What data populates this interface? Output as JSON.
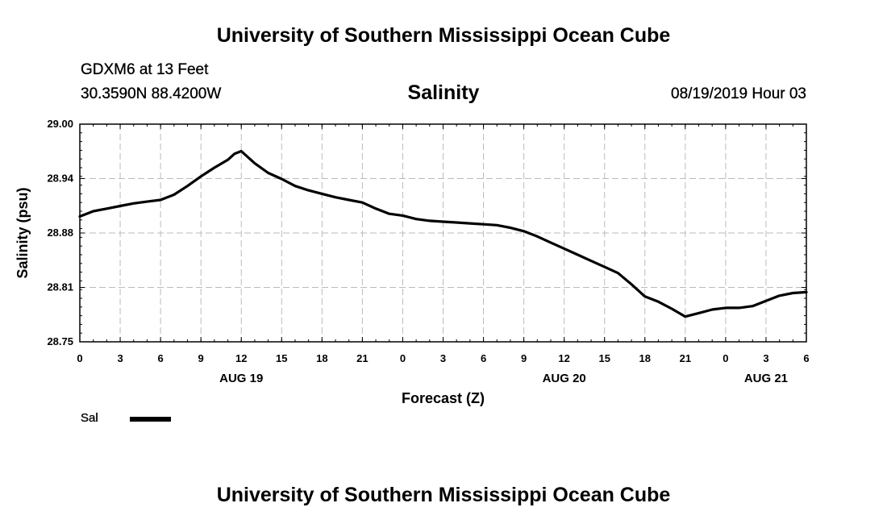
{
  "header": {
    "title": "University of Southern Mississippi Ocean Cube",
    "station": "GDXM6 at 13 Feet",
    "coords": "30.3590N 88.4200W",
    "timestamp": "08/19/2019 Hour 03"
  },
  "footer": {
    "title": "University of Southern Mississippi Ocean Cube"
  },
  "legend": {
    "label": "Sal",
    "color": "#000000"
  },
  "chart_data": {
    "type": "line",
    "title": "Salinity",
    "xlabel": "Forecast (Z)",
    "ylabel": "Salinity (psu)",
    "ylim": [
      28.75,
      29.0
    ],
    "xlim": [
      0,
      54
    ],
    "grid": true,
    "legend_position": "bottom-left",
    "y_ticks": [
      "28.75",
      "28.81",
      "28.88",
      "28.94",
      "29.00"
    ],
    "x_ticks": [
      "0",
      "3",
      "6",
      "9",
      "12",
      "15",
      "18",
      "21",
      "0",
      "3",
      "6",
      "9",
      "12",
      "15",
      "18",
      "21",
      "0",
      "3",
      "6"
    ],
    "date_labels": [
      {
        "label": "AUG 19",
        "hour_offset": 12
      },
      {
        "label": "AUG 20",
        "hour_offset": 36
      },
      {
        "label": "AUG 21",
        "hour_offset": 51
      }
    ],
    "series": [
      {
        "name": "Sal",
        "color": "#000000",
        "x": [
          0,
          1,
          2,
          3,
          4,
          5,
          6,
          7,
          8,
          9,
          10,
          11,
          11.5,
          12,
          13,
          14,
          15,
          16,
          17,
          18,
          19,
          20,
          21,
          22,
          23,
          24,
          25,
          26,
          27,
          28,
          29,
          30,
          31,
          32,
          33,
          34,
          35,
          36,
          37,
          38,
          39,
          40,
          41,
          42,
          43,
          44,
          45,
          46,
          47,
          48,
          49,
          50,
          51,
          52,
          53,
          54
        ],
        "y": [
          28.894,
          28.9,
          28.903,
          28.906,
          28.909,
          28.911,
          28.913,
          28.919,
          28.929,
          28.94,
          28.95,
          28.959,
          28.966,
          28.969,
          28.955,
          28.944,
          28.937,
          28.929,
          28.924,
          28.92,
          28.916,
          28.913,
          28.91,
          28.903,
          28.897,
          28.895,
          28.891,
          28.889,
          28.888,
          28.887,
          28.886,
          28.885,
          28.884,
          28.881,
          28.877,
          28.871,
          28.864,
          28.857,
          28.85,
          28.843,
          28.836,
          28.829,
          28.816,
          28.802,
          28.796,
          28.788,
          28.779,
          28.783,
          28.787,
          28.789,
          28.789,
          28.791,
          28.797,
          28.803,
          28.806,
          28.807
        ]
      }
    ]
  }
}
